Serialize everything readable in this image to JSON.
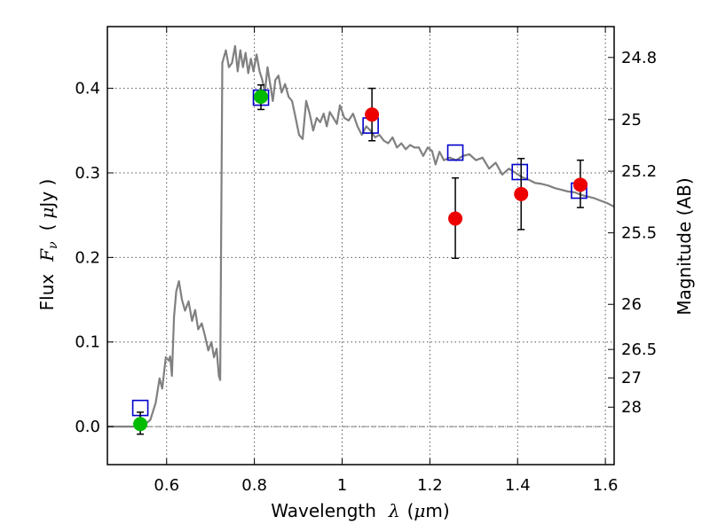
{
  "chart_data": {
    "type": "scatter",
    "xlabel_prefix": "Wavelength",
    "xlabel_symbol": "λ",
    "xlabel_unit_open": "(",
    "xlabel_unit_mu": "μ",
    "xlabel_unit_rest": "m)",
    "ylabel_prefix": "Flux",
    "ylabel_symbol": "F",
    "ylabel_sub": "ν",
    "ylabel_unit_open": "(",
    "ylabel_unit_mu": "μ",
    "ylabel_unit_rest": "Jy )",
    "y2label": "Magnitude (AB)",
    "xlim": [
      0.465,
      1.62
    ],
    "ylim": [
      -0.045,
      0.473
    ],
    "xticks": [
      0.6,
      0.8,
      1.0,
      1.2,
      1.4,
      1.6
    ],
    "xtick_labels": [
      "0.6",
      "0.8",
      "1",
      "1.2",
      "1.4",
      "1.6"
    ],
    "yticks": [
      0.0,
      0.1,
      0.2,
      0.3,
      0.4
    ],
    "ytick_labels": [
      "0.0",
      "0.1",
      "0.2",
      "0.3",
      "0.4"
    ],
    "mag_ticks": [
      24.8,
      25.0,
      25.2,
      25.5,
      26.0,
      26.5,
      27.0,
      28.0
    ],
    "mag_tick_labels": [
      "24.8",
      "25",
      "25.2",
      "25.5",
      "26",
      "26.5",
      "27",
      "28"
    ],
    "grid": true,
    "colors": {
      "model": "#808080",
      "green": "#00bb00",
      "red": "#ee0000",
      "box": "#0000cc",
      "zero_line": "#777777"
    },
    "series": [
      {
        "name": "model spectrum",
        "type": "line",
        "x": [
          0.465,
          0.54,
          0.552,
          0.563,
          0.575,
          0.584,
          0.59,
          0.598,
          0.605,
          0.608,
          0.612,
          0.617,
          0.622,
          0.628,
          0.635,
          0.642,
          0.65,
          0.658,
          0.665,
          0.672,
          0.68,
          0.687,
          0.695,
          0.702,
          0.708,
          0.714,
          0.719,
          0.722,
          0.727,
          0.735,
          0.742,
          0.749,
          0.756,
          0.762,
          0.768,
          0.774,
          0.78,
          0.786,
          0.792,
          0.798,
          0.805,
          0.812,
          0.818,
          0.824,
          0.83,
          0.836,
          0.842,
          0.848,
          0.855,
          0.862,
          0.87,
          0.878,
          0.886,
          0.894,
          0.902,
          0.91,
          0.918,
          0.926,
          0.934,
          0.942,
          0.95,
          0.958,
          0.965,
          0.972,
          0.98,
          0.988,
          0.995,
          1.005,
          1.015,
          1.025,
          1.035,
          1.045,
          1.055,
          1.065,
          1.075,
          1.085,
          1.095,
          1.105,
          1.115,
          1.125,
          1.135,
          1.145,
          1.155,
          1.165,
          1.175,
          1.185,
          1.195,
          1.205,
          1.213,
          1.222,
          1.232,
          1.245,
          1.26,
          1.275,
          1.29,
          1.305,
          1.32,
          1.335,
          1.35,
          1.365,
          1.38,
          1.395,
          1.41,
          1.425,
          1.44,
          1.455,
          1.47,
          1.485,
          1.5,
          1.515,
          1.53,
          1.545,
          1.56,
          1.575,
          1.59,
          1.605,
          1.62
        ],
        "y": [
          0.0,
          0.0,
          0.003,
          0.008,
          0.028,
          0.057,
          0.045,
          0.082,
          0.078,
          0.083,
          0.06,
          0.13,
          0.16,
          0.172,
          0.15,
          0.137,
          0.148,
          0.125,
          0.138,
          0.115,
          0.122,
          0.108,
          0.09,
          0.1,
          0.082,
          0.092,
          0.06,
          0.055,
          0.43,
          0.445,
          0.425,
          0.43,
          0.45,
          0.42,
          0.445,
          0.425,
          0.442,
          0.418,
          0.435,
          0.42,
          0.44,
          0.42,
          0.41,
          0.395,
          0.425,
          0.405,
          0.385,
          0.41,
          0.415,
          0.395,
          0.405,
          0.39,
          0.385,
          0.365,
          0.345,
          0.34,
          0.385,
          0.37,
          0.35,
          0.365,
          0.36,
          0.37,
          0.355,
          0.372,
          0.365,
          0.358,
          0.38,
          0.365,
          0.362,
          0.37,
          0.355,
          0.345,
          0.355,
          0.35,
          0.342,
          0.345,
          0.338,
          0.335,
          0.342,
          0.33,
          0.335,
          0.328,
          0.333,
          0.33,
          0.33,
          0.32,
          0.33,
          0.326,
          0.31,
          0.325,
          0.315,
          0.318,
          0.315,
          0.32,
          0.322,
          0.315,
          0.318,
          0.305,
          0.312,
          0.298,
          0.305,
          0.3,
          0.295,
          0.292,
          0.288,
          0.287,
          0.285,
          0.282,
          0.28,
          0.278,
          0.277,
          0.274,
          0.272,
          0.27,
          0.267,
          0.264,
          0.26
        ]
      },
      {
        "name": "green photometry",
        "type": "points",
        "x": [
          0.54,
          0.815
        ],
        "y": [
          0.003,
          0.39
        ],
        "yerr_low": [
          0.012,
          0.015
        ],
        "yerr_high": [
          0.014,
          0.014
        ]
      },
      {
        "name": "red photometry",
        "type": "points",
        "x": [
          1.068,
          1.258,
          1.408,
          1.543
        ],
        "y": [
          0.369,
          0.246,
          0.275,
          0.286
        ],
        "yerr_low": [
          0.031,
          0.047,
          0.042,
          0.027
        ],
        "yerr_high": [
          0.031,
          0.048,
          0.042,
          0.029
        ]
      },
      {
        "name": "model photometry",
        "type": "squares",
        "x": [
          0.54,
          0.815,
          1.065,
          1.258,
          1.405,
          1.54
        ],
        "y": [
          0.022,
          0.389,
          0.356,
          0.324,
          0.301,
          0.279
        ]
      }
    ]
  }
}
